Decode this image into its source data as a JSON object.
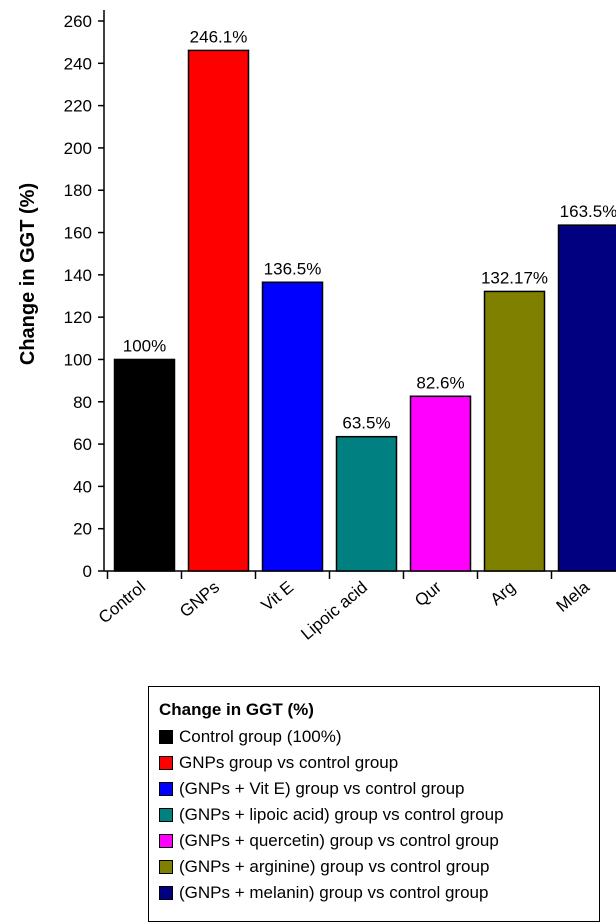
{
  "chart_data": {
    "type": "bar",
    "ylabel": "Change in GGT (%)",
    "ylim": [
      0,
      260
    ],
    "yticks": [
      0,
      20,
      40,
      60,
      80,
      100,
      120,
      140,
      160,
      180,
      200,
      220,
      240,
      260
    ],
    "categories": [
      "Control",
      "GNPs",
      "Vit E",
      "Lipoic acid",
      "Qur",
      "Arg",
      "Mela"
    ],
    "values": [
      100,
      246.1,
      136.5,
      63.5,
      82.6,
      132.17,
      163.5
    ],
    "data_labels": [
      "100%",
      "246.1%",
      "136.5%",
      "63.5%",
      "82.6%",
      "132.17%",
      "163.5%"
    ],
    "colors": [
      "#000000",
      "#ff0000",
      "#0000ff",
      "#008080",
      "#ff00ff",
      "#808000",
      "#000080"
    ],
    "grid": false
  },
  "legend": {
    "title": "Change in GGT (%)",
    "items": [
      {
        "label": "Control group (100%)",
        "color": "#000000"
      },
      {
        "label": "GNPs group vs control group",
        "color": "#ff0000"
      },
      {
        "label": "(GNPs + Vit E) group vs control group",
        "color": "#0000ff"
      },
      {
        "label": "(GNPs + lipoic acid) group vs control group",
        "color": "#008080"
      },
      {
        "label": "(GNPs + quercetin) group vs control group",
        "color": "#ff00ff"
      },
      {
        "label": "(GNPs + arginine) group vs control group",
        "color": "#808000"
      },
      {
        "label": "(GNPs + melanin) group vs control group",
        "color": "#000080"
      }
    ]
  }
}
